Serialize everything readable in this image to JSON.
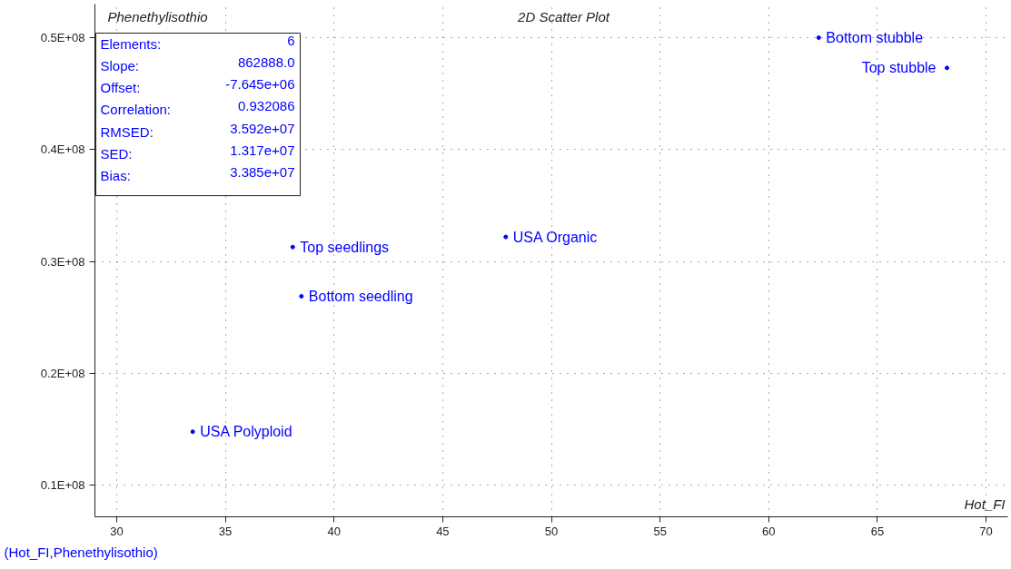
{
  "chart_data": {
    "type": "scatter",
    "title": "2D Scatter Plot",
    "xlabel": "Hot_FI",
    "ylabel": "Phenethylisothio",
    "annotations": [
      "Elements: 6\nSlope: 862888.0\nOffset: -7.645e+06\nCorrelation: 0.932086\nRMSED: 3.592e+07\nSED: 1.317e+07\nBias: 3.385e+07",
      "(Hot_FI,Phenethylisothio)"
    ],
    "series": [
      {
        "name": "Bottom stubble",
        "color": "#0000ff",
        "x": [
          62.3
        ],
        "values": [
          50000000
        ]
      },
      {
        "name": "Top stubble",
        "color": "#0000ff",
        "x": [
          68.2
        ],
        "values": [
          47300000
        ]
      },
      {
        "name": "USA Organic",
        "color": "#0000ff",
        "x": [
          47.9
        ],
        "values": [
          32200000
        ]
      },
      {
        "name": "Top seedlings",
        "color": "#0000ff",
        "x": [
          38.1
        ],
        "values": [
          31300000
        ]
      },
      {
        "name": "Bottom seedling",
        "color": "#0000ff",
        "x": [
          38.5
        ],
        "values": [
          26900000
        ]
      },
      {
        "name": "USA Polyploid",
        "color": "#0000ff",
        "x": [
          33.5
        ],
        "values": [
          14800000
        ]
      }
    ],
    "xlim": [
      29,
      71
    ],
    "xticks": [
      30,
      35,
      40,
      45,
      50,
      55,
      60,
      65,
      70
    ],
    "ylim": [
      7200000,
      53000000
    ],
    "yticks": [
      {
        "value": 10000000,
        "label": "0.1E+08"
      },
      {
        "value": 20000000,
        "label": "0.2E+08"
      },
      {
        "value": 30000000,
        "label": "0.3E+08"
      },
      {
        "value": 40000000,
        "label": "0.4E+08"
      },
      {
        "value": 50000000,
        "label": "0.5E+08"
      }
    ],
    "grid": true,
    "marker": "circle"
  }
}
